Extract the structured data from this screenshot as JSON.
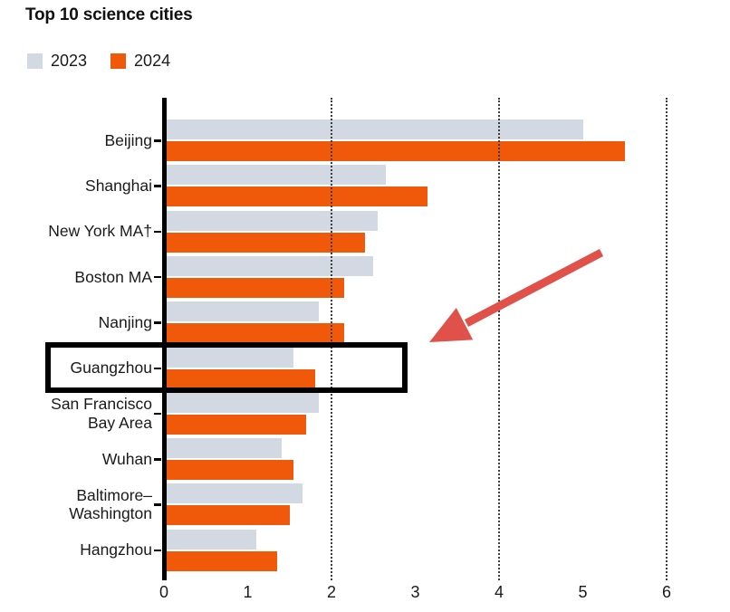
{
  "title": "Top 10 science cities",
  "legend": {
    "items": [
      {
        "label": "2023",
        "color": "#d2d9e2"
      },
      {
        "label": "2024",
        "color": "#f0590a"
      }
    ]
  },
  "chart_data": {
    "type": "bar",
    "orientation": "horizontal",
    "title": "Top 10 science cities",
    "categories": [
      "Beijing",
      "Shanghai",
      "New York MA†",
      "Boston MA",
      "Nanjing",
      "Guangzhou",
      "San Francisco\nBay Area",
      "Wuhan",
      "Baltimore–\nWashington",
      "Hangzhou"
    ],
    "series": [
      {
        "name": "2023",
        "color": "#d2d9e2",
        "values": [
          5.0,
          2.65,
          2.55,
          2.5,
          1.85,
          1.55,
          1.85,
          1.4,
          1.65,
          1.1
        ]
      },
      {
        "name": "2024",
        "color": "#f0590a",
        "values": [
          5.5,
          3.15,
          2.4,
          2.15,
          2.15,
          1.8,
          1.7,
          1.55,
          1.5,
          1.35
        ]
      }
    ],
    "xlim": [
      0,
      6
    ],
    "xtick_labels": [
      "0",
      "1",
      "2",
      "3",
      "4",
      "5",
      "6"
    ],
    "gridlines_at": [
      2,
      4,
      6
    ],
    "grid": "dotted-vertical",
    "legend_position": "top-left",
    "annotations": {
      "highlight_box": {
        "shape": "rectangle-outline",
        "color": "#000000",
        "target_category": "Guangzhou"
      },
      "arrow": {
        "shape": "arrow",
        "color": "#e0514a",
        "points_to": "Guangzhou highlighted row"
      }
    }
  }
}
